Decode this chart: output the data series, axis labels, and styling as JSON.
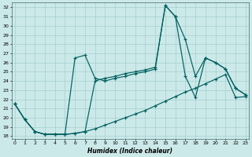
{
  "xlabel": "Humidex (Indice chaleur)",
  "xlim": [
    -0.3,
    23.3
  ],
  "ylim": [
    17.7,
    32.5
  ],
  "xticks": [
    0,
    1,
    2,
    3,
    4,
    5,
    6,
    7,
    8,
    9,
    10,
    11,
    12,
    13,
    14,
    15,
    16,
    17,
    18,
    19,
    20,
    21,
    22,
    23
  ],
  "yticks": [
    18,
    19,
    20,
    21,
    22,
    23,
    24,
    25,
    26,
    27,
    28,
    29,
    30,
    31,
    32
  ],
  "background_color": "#cce9e9",
  "grid_color": "#a0cccc",
  "line_color": "#005f5f",
  "line1_x": [
    0,
    1,
    2,
    3,
    4,
    5,
    6,
    7,
    8,
    9,
    10,
    11,
    12,
    13,
    14,
    15,
    16,
    17,
    18,
    19,
    20,
    21,
    22,
    23
  ],
  "line1_y": [
    21.5,
    19.8,
    18.5,
    18.2,
    18.2,
    18.2,
    18.3,
    18.5,
    18.8,
    19.2,
    19.6,
    20.0,
    20.4,
    20.8,
    21.3,
    21.8,
    22.3,
    22.8,
    23.2,
    23.7,
    24.2,
    24.7,
    22.2,
    22.3
  ],
  "line2_x": [
    0,
    1,
    2,
    3,
    4,
    5,
    6,
    7,
    8,
    9,
    10,
    11,
    12,
    13,
    14,
    15,
    16,
    17,
    18,
    19,
    20,
    21,
    22,
    23
  ],
  "line2_y": [
    21.5,
    19.8,
    18.5,
    18.2,
    18.2,
    18.2,
    26.5,
    26.8,
    24.3,
    24.0,
    24.3,
    24.5,
    24.8,
    25.0,
    25.3,
    32.2,
    31.0,
    28.5,
    24.5,
    26.5,
    26.0,
    25.3,
    23.2,
    22.5
  ],
  "line3_x": [
    0,
    1,
    2,
    3,
    4,
    5,
    6,
    7,
    8,
    9,
    10,
    11,
    12,
    13,
    14,
    15,
    16,
    17,
    18,
    19,
    20,
    21,
    22,
    23
  ],
  "line3_y": [
    21.5,
    19.8,
    18.5,
    18.2,
    18.2,
    18.2,
    18.3,
    18.5,
    24.0,
    24.3,
    24.5,
    24.8,
    25.0,
    25.2,
    25.5,
    32.2,
    31.0,
    24.5,
    22.2,
    26.5,
    26.0,
    25.3,
    23.2,
    22.5
  ]
}
